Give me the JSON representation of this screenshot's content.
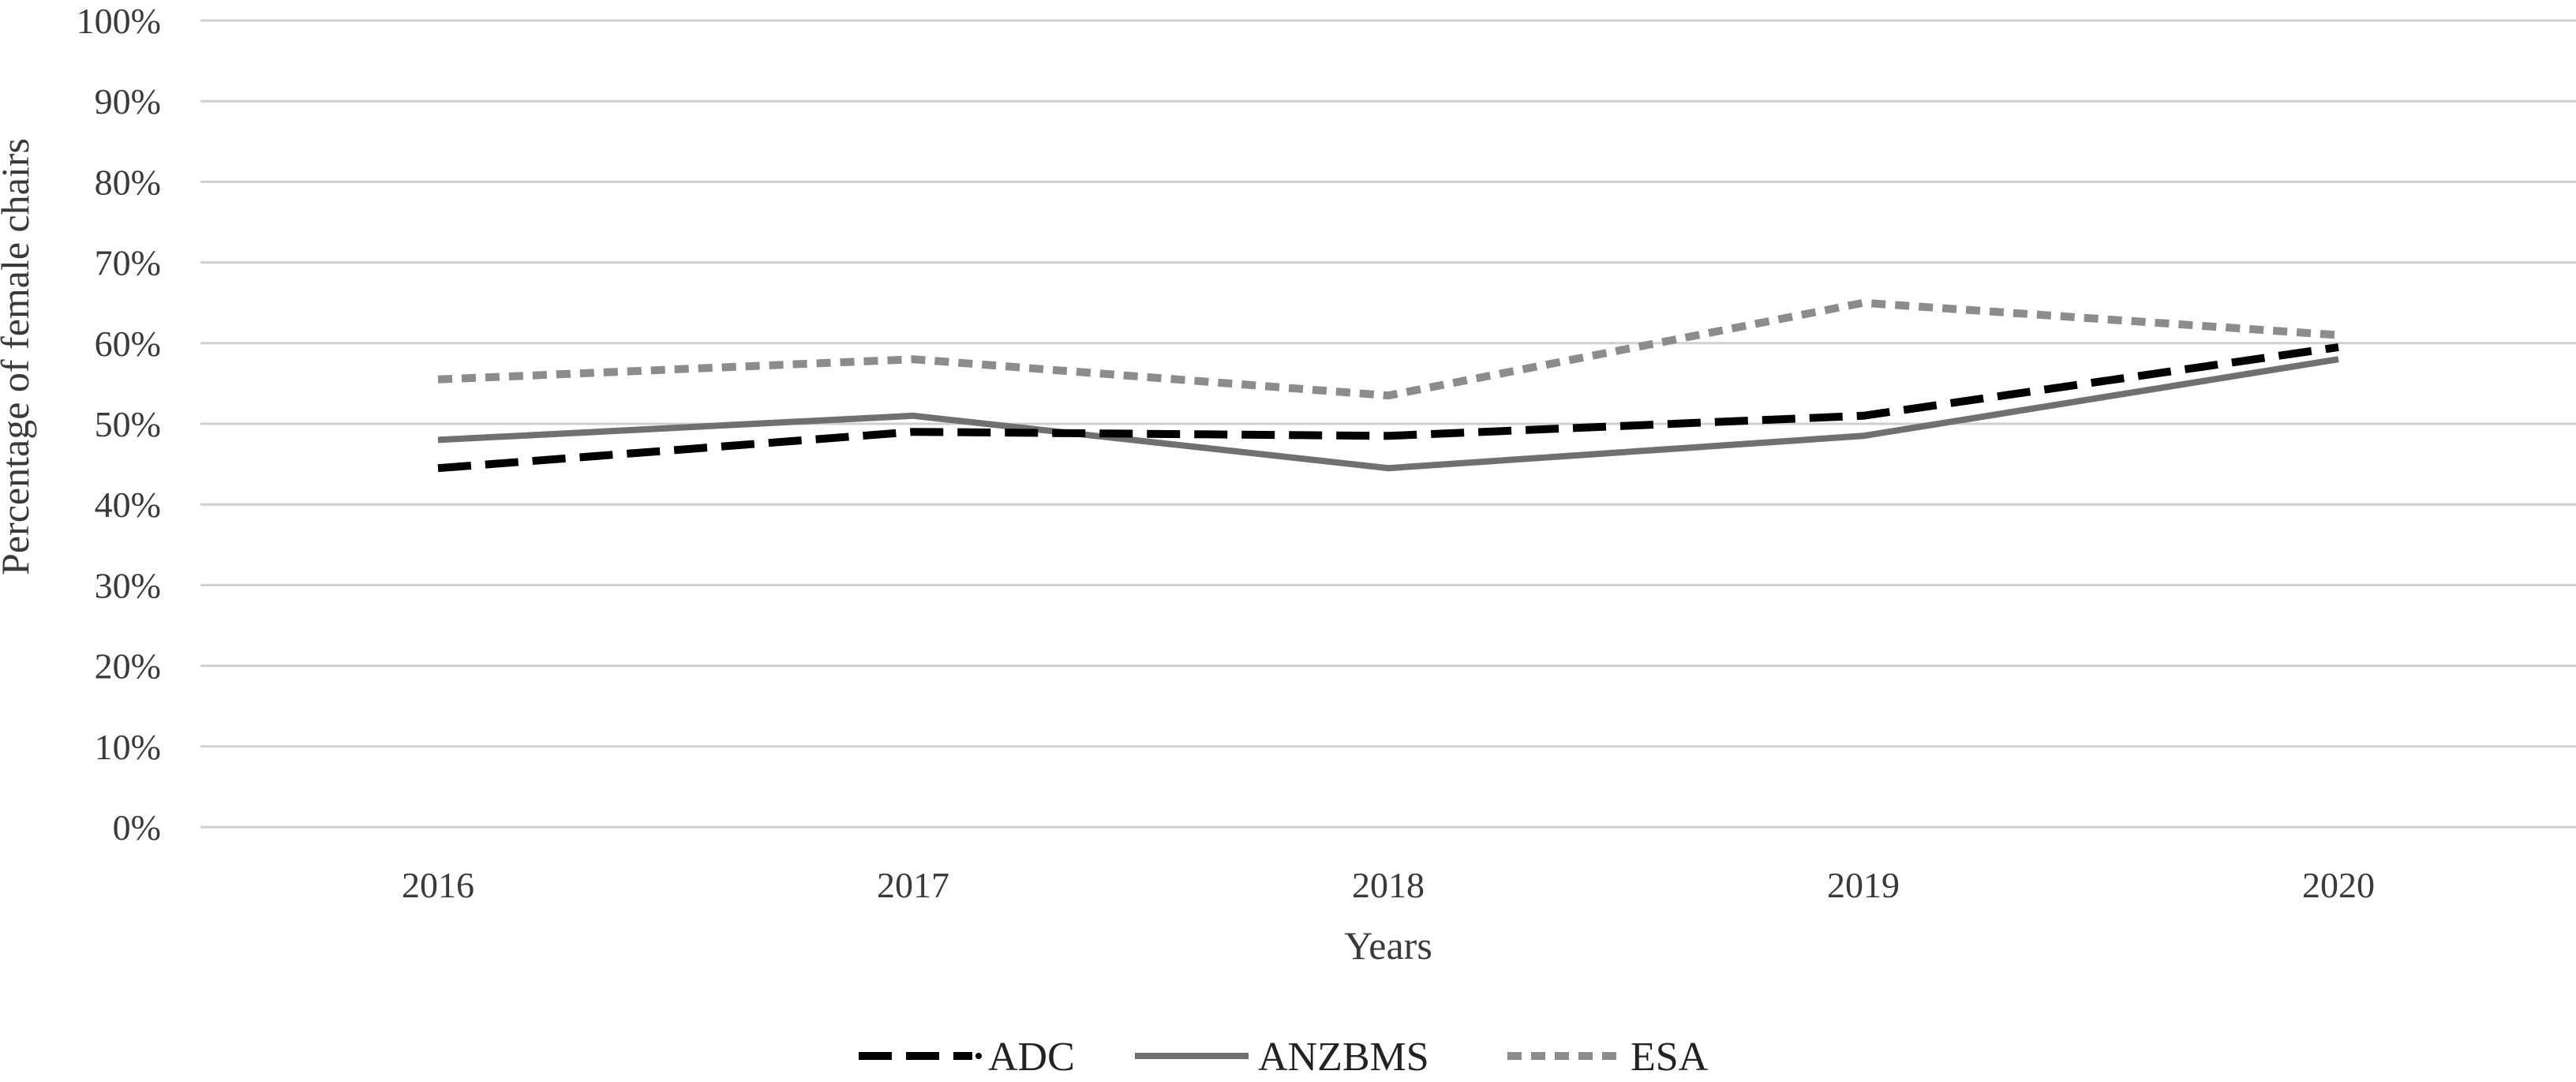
{
  "chart_data": {
    "type": "line",
    "title": "",
    "xlabel": "Years",
    "ylabel": "Percentage of female chairs",
    "x": [
      "2016",
      "2017",
      "2018",
      "2019",
      "2020"
    ],
    "ylim": [
      0,
      100
    ],
    "y_ticks": [
      "0%",
      "10%",
      "20%",
      "30%",
      "40%",
      "50%",
      "60%",
      "70%",
      "80%",
      "90%",
      "100%"
    ],
    "grid": "horizontal",
    "legend_position": "bottom",
    "series": [
      {
        "name": "ADC",
        "legend_label": "ADC",
        "values": [
          44.5,
          49,
          48.5,
          51,
          59.5
        ],
        "color": "#000000",
        "style": "long-dash"
      },
      {
        "name": "ANZBMS",
        "legend_label": "ANZBMS",
        "values": [
          48,
          51,
          44.5,
          48.5,
          58
        ],
        "color": "#707070",
        "style": "solid"
      },
      {
        "name": "ESA",
        "legend_label": "ESA",
        "values": [
          55.5,
          58,
          53.5,
          65,
          61
        ],
        "color": "#8c8c8c",
        "style": "short-dash"
      }
    ]
  }
}
